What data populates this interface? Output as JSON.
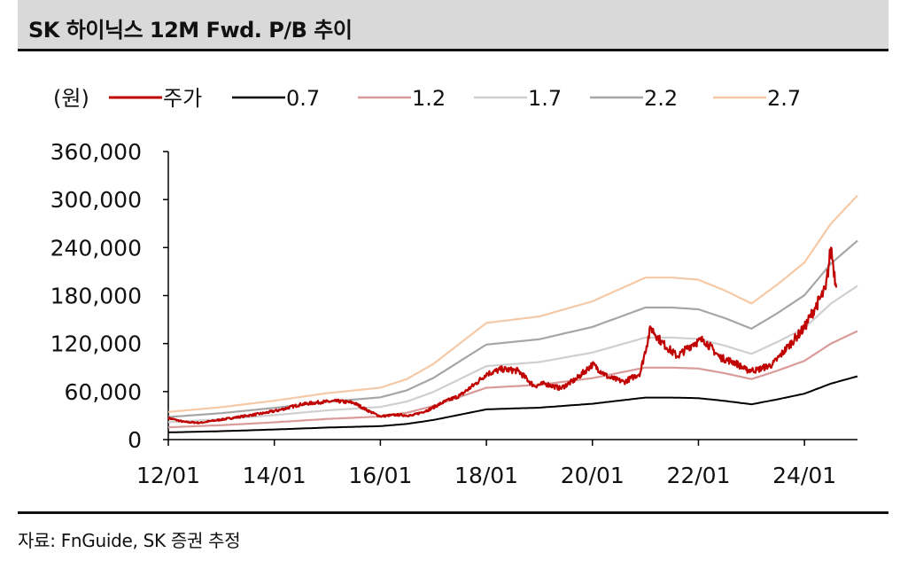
{
  "header": {
    "title": "SK 하이닉스 12M Fwd. P/B 추이"
  },
  "footer": {
    "source": "자료: FnGuide, SK 증권 추정"
  },
  "chart_data": {
    "type": "line",
    "title": "SK 하이닉스 12M Fwd. P/B 추이",
    "unit_label": "(원)",
    "xlabel": "",
    "ylabel": "",
    "ylim": [
      0,
      360000
    ],
    "xlim": [
      2012.0,
      2025.0
    ],
    "yticks": [
      0,
      60000,
      120000,
      180000,
      240000,
      300000,
      360000
    ],
    "ytick_labels": [
      "0",
      "60,000",
      "120,000",
      "180,000",
      "240,000",
      "300,000",
      "360,000"
    ],
    "xticks": [
      2012,
      2014,
      2016,
      2018,
      2020,
      2022,
      2024
    ],
    "xtick_labels": [
      "12/01",
      "14/01",
      "16/01",
      "18/01",
      "20/01",
      "22/01",
      "24/01"
    ],
    "legend": "top",
    "band_base": {
      "x": [
        2012.0,
        2013.0,
        2014.0,
        2015.0,
        2016.0,
        2016.5,
        2017.0,
        2017.5,
        2018.0,
        2019.0,
        2020.0,
        2021.0,
        2021.5,
        2022.0,
        2022.5,
        2023.0,
        2023.5,
        2024.0,
        2024.5,
        2025.0
      ],
      "bps": [
        12800,
        15000,
        18000,
        21500,
        24000,
        28000,
        35000,
        44500,
        54000,
        57000,
        64000,
        75000,
        75000,
        74000,
        69000,
        63000,
        72000,
        82000,
        100000,
        113000
      ]
    },
    "series": [
      {
        "name": "주가",
        "color": "#c00000",
        "x": [
          2012.0,
          2012.3,
          2012.6,
          2013.0,
          2013.4,
          2013.8,
          2014.1,
          2014.5,
          2014.9,
          2015.2,
          2015.5,
          2015.8,
          2016.0,
          2016.3,
          2016.6,
          2016.9,
          2017.2,
          2017.5,
          2017.8,
          2018.0,
          2018.3,
          2018.6,
          2018.9,
          2019.1,
          2019.4,
          2019.7,
          2020.0,
          2020.3,
          2020.6,
          2020.9,
          2021.1,
          2021.3,
          2021.6,
          2021.9,
          2022.1,
          2022.4,
          2022.7,
          2022.9,
          2023.1,
          2023.4,
          2023.7,
          2024.0,
          2024.2,
          2024.4,
          2024.5,
          2024.6
        ],
        "values": [
          27000,
          22000,
          21000,
          25000,
          29000,
          33000,
          37000,
          44000,
          47000,
          48000,
          46000,
          35000,
          29000,
          31000,
          30000,
          37000,
          47000,
          55000,
          70000,
          82000,
          88000,
          86000,
          67000,
          70000,
          64000,
          76000,
          94000,
          78000,
          72000,
          83000,
          140000,
          122000,
          104000,
          120000,
          125000,
          103000,
          96000,
          87000,
          87000,
          94000,
          117000,
          140000,
          165000,
          188000,
          240000,
          190000
        ]
      },
      {
        "name": "0.7",
        "color": "#000000",
        "multiple": 0.7
      },
      {
        "name": "1.2",
        "color": "#d99a9a",
        "multiple": 1.2
      },
      {
        "name": "1.7",
        "color": "#cfcfcf",
        "multiple": 1.7
      },
      {
        "name": "2.2",
        "color": "#a6a6a6",
        "multiple": 2.2
      },
      {
        "name": "2.7",
        "color": "#f6c9a6",
        "multiple": 2.7
      }
    ]
  }
}
